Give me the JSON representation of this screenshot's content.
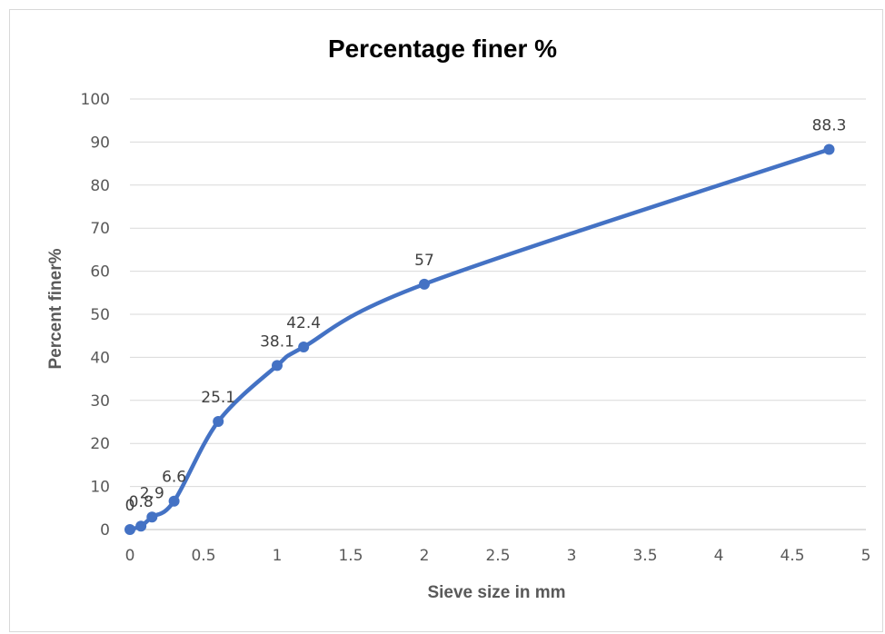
{
  "chart_data": {
    "type": "line",
    "title": "Percentage finer %",
    "xlabel": "Sieve size in mm",
    "ylabel": "Percent finer%",
    "xlim": [
      0,
      5
    ],
    "ylim": [
      0,
      100
    ],
    "x_ticks": [
      "0",
      "0.5",
      "1",
      "1.5",
      "2",
      "2.5",
      "3",
      "3.5",
      "4",
      "4.5",
      "5"
    ],
    "y_ticks": [
      "0",
      "10",
      "20",
      "30",
      "40",
      "50",
      "60",
      "70",
      "80",
      "90",
      "100"
    ],
    "grid": true,
    "legend": "none",
    "smooth": true,
    "series": [
      {
        "color": "#4472c4",
        "x": [
          0,
          0.075,
          0.15,
          0.3,
          0.6,
          1.0,
          1.18,
          2.0,
          4.75
        ],
        "y": [
          0,
          0.8,
          2.9,
          6.6,
          25.1,
          38.1,
          42.4,
          57,
          88.3
        ],
        "labels": [
          "0",
          "0.8",
          "2.9",
          "6.6",
          "25.1",
          "38.1",
          "42.4",
          "57",
          "88.3"
        ]
      }
    ]
  }
}
